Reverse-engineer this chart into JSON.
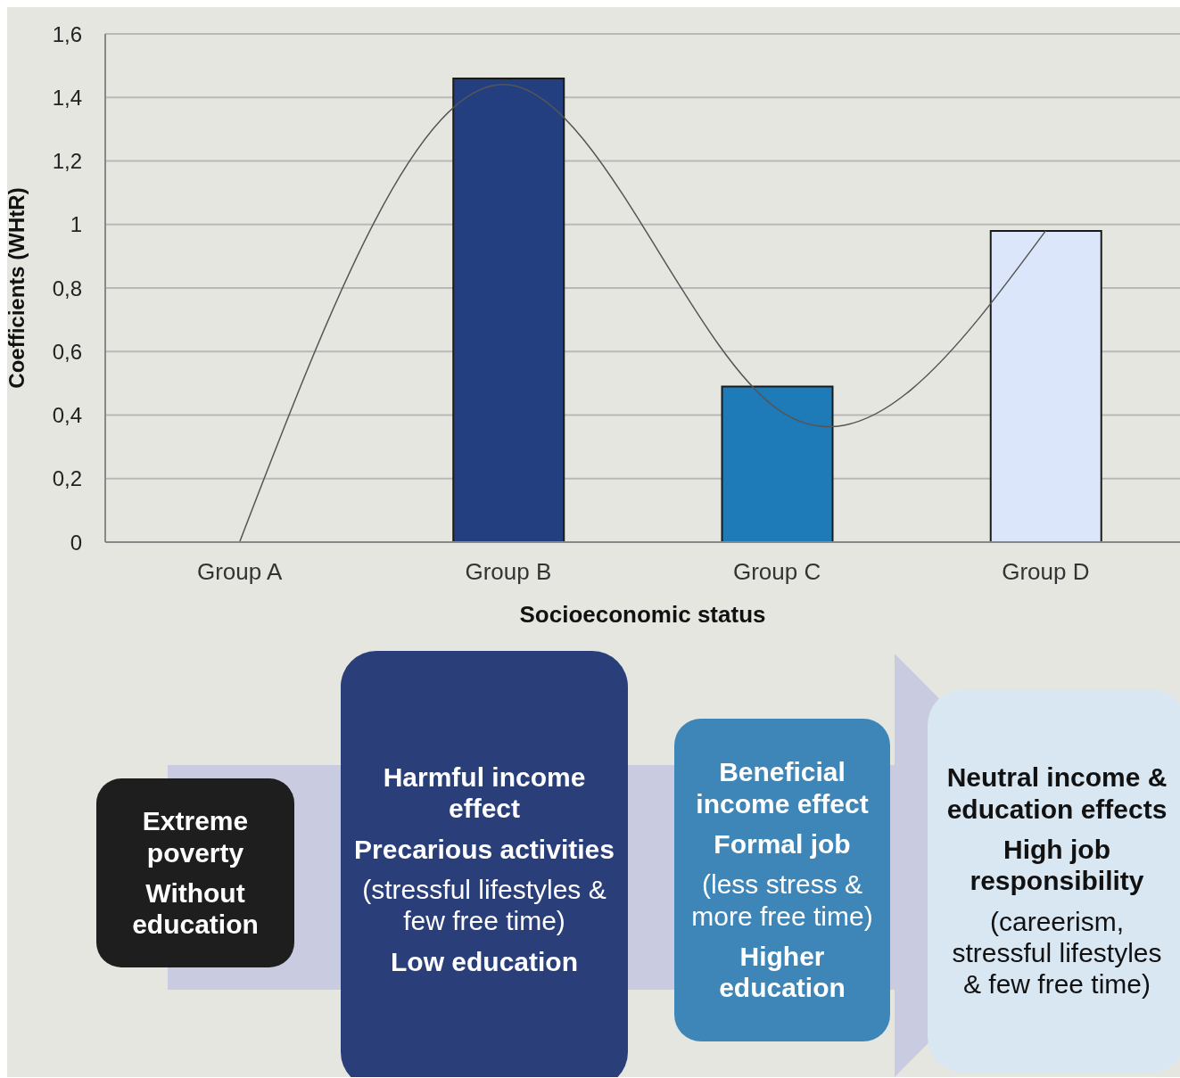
{
  "chart_data": {
    "type": "bar",
    "xlabel": "Socioeconomic status",
    "ylabel": "Coefficients (WHtR)",
    "categories": [
      "Group A",
      "Group B",
      "Group C",
      "Group D"
    ],
    "series": [
      {
        "colors": [
          "#243f80",
          "#243f80",
          "#1f7ab8",
          "#dce6fa"
        ],
        "values": [
          0,
          1.46,
          0.49,
          0.98
        ]
      },
      {
        "type": "line",
        "color": "#555555",
        "values": [
          0,
          1.44,
          0.42,
          0.98
        ]
      }
    ],
    "ylim": [
      0,
      1.6
    ],
    "yticks": [
      {
        "value": 0,
        "label": "0"
      },
      {
        "value": 0.2,
        "label": "0,2"
      },
      {
        "value": 0.4,
        "label": "0,4"
      },
      {
        "value": 0.6,
        "label": "0,6"
      },
      {
        "value": 0.8,
        "label": "0,8"
      },
      {
        "value": 1,
        "label": "1"
      },
      {
        "value": 1.2,
        "label": "1,2"
      },
      {
        "value": 1.4,
        "label": "1,4"
      },
      {
        "value": 1.6,
        "label": "1,6"
      }
    ],
    "grid": "y",
    "annotations": [
      "Extreme poverty",
      "Without education",
      "Harmful income effect",
      "Precarious activities",
      "(stressful lifestyles & few free time)",
      "Low education",
      "Beneficial income effect",
      "Formal job",
      "(less stress & more free time)",
      "Higher education",
      "Neutral income & education effects",
      "High job responsibility",
      "(careerism, stressful lifestyles & few free time)"
    ]
  }
}
